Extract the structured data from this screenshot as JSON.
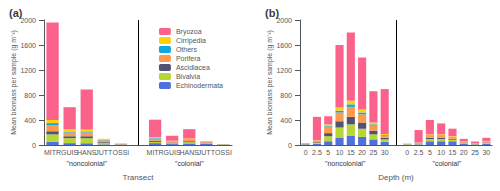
{
  "chart_data": [
    {
      "type": "bar",
      "stacked": true,
      "title": "(a)",
      "xlabel": "Transect",
      "ylabel": "Mean biomass per sample (g m⁻²)",
      "ylim": [
        0,
        2000
      ],
      "yticks": [
        0,
        400,
        800,
        1200,
        1600,
        2000
      ],
      "grid": false,
      "legend": "upper right",
      "groups": [
        {
          "label": "\"noncolonial\"",
          "categories": [
            "MITR",
            "GUIS",
            "HANS",
            "JUTT",
            "OSSI"
          ],
          "series": [
            {
              "name": "Echinodermata",
              "values": [
                50,
                30,
                30,
                10,
                5
              ]
            },
            {
              "name": "Bivalvia",
              "values": [
                120,
                80,
                80,
                20,
                5
              ]
            },
            {
              "name": "Ascidiacea",
              "values": [
                50,
                30,
                30,
                15,
                3
              ]
            },
            {
              "name": "Porifera",
              "values": [
                100,
                60,
                60,
                30,
                5
              ]
            },
            {
              "name": "Others",
              "values": [
                30,
                15,
                15,
                10,
                2
              ]
            },
            {
              "name": "Cirripedia",
              "values": [
                50,
                40,
                35,
                15,
                3
              ]
            },
            {
              "name": "Bryozoa",
              "values": [
                1560,
                350,
                640,
                0,
                0
              ]
            }
          ]
        },
        {
          "label": "\"colonial\"",
          "categories": [
            "MITR",
            "GUIS",
            "HANS",
            "JUTT",
            "OSSI"
          ],
          "series": [
            {
              "name": "Echinodermata",
              "values": [
                30,
                15,
                25,
                20,
                5
              ]
            },
            {
              "name": "Bivalvia",
              "values": [
                20,
                15,
                20,
                10,
                3
              ]
            },
            {
              "name": "Ascidiacea",
              "values": [
                20,
                10,
                15,
                8,
                2
              ]
            },
            {
              "name": "Porifera",
              "values": [
                30,
                15,
                25,
                15,
                3
              ]
            },
            {
              "name": "Others",
              "values": [
                10,
                5,
                8,
                5,
                1
              ]
            },
            {
              "name": "Cirripedia",
              "values": [
                15,
                8,
                10,
                6,
                2
              ]
            },
            {
              "name": "Bryozoa",
              "values": [
                280,
                80,
                150,
                0,
                0
              ]
            }
          ]
        }
      ]
    },
    {
      "type": "bar",
      "stacked": true,
      "title": "(b)",
      "xlabel": "Depth (m)",
      "ylabel": "Mean biomass per sample (g m⁻²)",
      "ylim": [
        0,
        2000
      ],
      "yticks": [
        0,
        400,
        800,
        1200,
        1600,
        2000
      ],
      "grid": false,
      "groups": [
        {
          "label": "\"noncolonial\"",
          "categories": [
            "0",
            "2.5",
            "5",
            "10",
            "15",
            "20",
            "25",
            "30"
          ],
          "series": [
            {
              "name": "Echinodermata",
              "values": [
                10,
                20,
                60,
                120,
                150,
                130,
                90,
                50
              ]
            },
            {
              "name": "Bivalvia",
              "values": [
                5,
                15,
                80,
                160,
                180,
                130,
                80,
                40
              ]
            },
            {
              "name": "Ascidiacea",
              "values": [
                3,
                10,
                50,
                100,
                120,
                100,
                60,
                25
              ]
            },
            {
              "name": "Porifera",
              "values": [
                3,
                15,
                90,
                140,
                160,
                130,
                80,
                35
              ]
            },
            {
              "name": "Others",
              "values": [
                2,
                5,
                20,
                30,
                40,
                30,
                20,
                10
              ]
            },
            {
              "name": "Cirripedia",
              "values": [
                2,
                10,
                30,
                50,
                60,
                50,
                30,
                15
              ]
            },
            {
              "name": "Bryozoa",
              "values": [
                5,
                375,
                130,
                1000,
                1090,
                830,
                500,
                720
              ]
            }
          ]
        },
        {
          "label": "\"colonial\"",
          "categories": [
            "0",
            "2.5",
            "5",
            "10",
            "15",
            "20",
            "25",
            "30"
          ],
          "series": [
            {
              "name": "Echinodermata",
              "values": [
                5,
                10,
                60,
                60,
                60,
                20,
                10,
                20
              ]
            },
            {
              "name": "Bivalvia",
              "values": [
                3,
                8,
                35,
                35,
                25,
                10,
                6,
                12
              ]
            },
            {
              "name": "Ascidiacea",
              "values": [
                2,
                5,
                20,
                20,
                15,
                8,
                4,
                8
              ]
            },
            {
              "name": "Porifera",
              "values": [
                3,
                8,
                35,
                35,
                25,
                10,
                6,
                15
              ]
            },
            {
              "name": "Others",
              "values": [
                1,
                3,
                8,
                8,
                6,
                4,
                2,
                4
              ]
            },
            {
              "name": "Cirripedia",
              "values": [
                2,
                5,
                12,
                12,
                10,
                6,
                3,
                6
              ]
            },
            {
              "name": "Bryozoa",
              "values": [
                5,
                200,
                230,
                175,
                120,
                40,
                25,
                50
              ]
            }
          ]
        }
      ]
    }
  ]
}
